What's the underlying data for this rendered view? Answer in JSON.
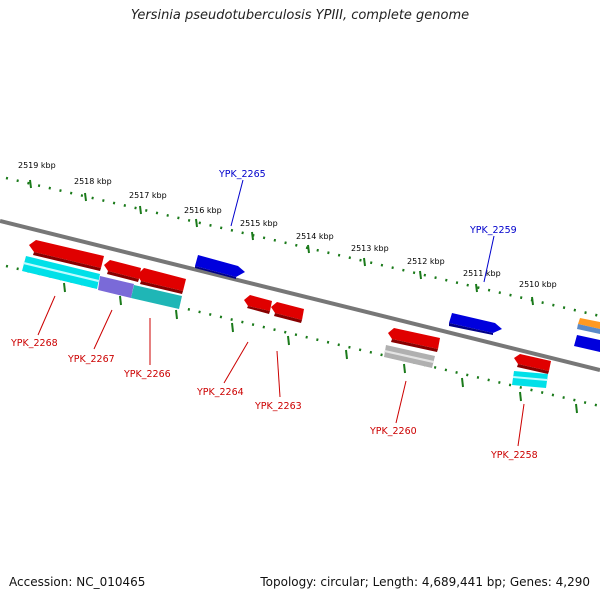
{
  "title": "Yersinia pseudotuberculosis YPIII, complete genome",
  "footer": {
    "accession": "Accession: NC_010465",
    "summary": "Topology: circular; Length: 4,689,441 bp; Genes: 4,290"
  },
  "colors": {
    "backbone": "#777777",
    "ticks": "#1a7a1a",
    "red": "#e00000",
    "blue": "#0000dd",
    "cyan": "#00e0e8",
    "grey": "#b0b0b0",
    "violet": "#7a6ad8",
    "teal": "#1fb6b6",
    "orange": "#ff9922",
    "label_red": "#cc0000",
    "label_blue": "#0000cc"
  },
  "kbp_labels": [
    "2519 kbp",
    "2518 kbp",
    "2517 kbp",
    "2516 kbp",
    "2515 kbp",
    "2514 kbp",
    "2513 kbp",
    "2512 kbp",
    "2511 kbp",
    "2510 kbp"
  ],
  "gene_labels": {
    "ypk_2265": "YPK_2265",
    "ypk_2259": "YPK_2259",
    "ypk_2268": "YPK_2268",
    "ypk_2267": "YPK_2267",
    "ypk_2266": "YPK_2266",
    "ypk_2264": "YPK_2264",
    "ypk_2263": "YPK_2263",
    "ypk_2260": "YPK_2260",
    "ypk_2258": "YPK_2258"
  }
}
